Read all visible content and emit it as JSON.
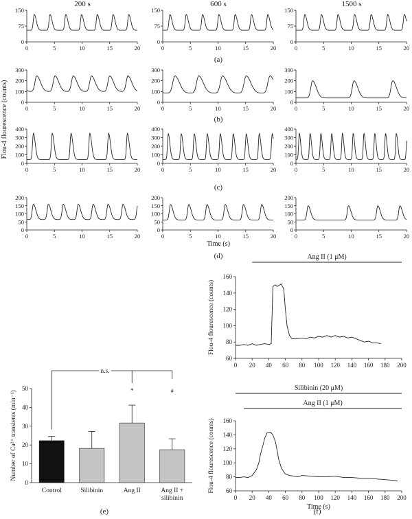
{
  "figure": {
    "column_titles": [
      "200 s",
      "600 s",
      "1500 s"
    ],
    "row_captions": [
      "(a)",
      "(b)",
      "(c)",
      "(d)"
    ],
    "y_axis_label": "Flou-4 flourescence (counts)",
    "x_axis_label": "Time (s)",
    "panel_e_caption": "(e)",
    "panel_f_caption": "(f)"
  },
  "chart_data": [
    {
      "type": "line",
      "panel": "a",
      "column": "200 s",
      "xlim": [
        0,
        20
      ],
      "ylim": [
        0,
        150
      ],
      "xticks": [
        0,
        5,
        10,
        15,
        20
      ],
      "yticks": [
        0,
        75,
        150
      ],
      "trace": {
        "period": 2.85,
        "phase": 1.35,
        "base": 55,
        "peak": 130,
        "width": 0.5
      }
    },
    {
      "type": "line",
      "panel": "a",
      "column": "600 s",
      "xlim": [
        0,
        20
      ],
      "ylim": [
        0,
        150
      ],
      "xticks": [
        0,
        5,
        10,
        15,
        20
      ],
      "yticks": [
        0,
        75,
        150
      ],
      "trace": {
        "period": 2.95,
        "phase": 1.3,
        "base": 55,
        "peak": 130,
        "width": 0.5
      }
    },
    {
      "type": "line",
      "panel": "a",
      "column": "1500 s",
      "xlim": [
        0,
        20
      ],
      "ylim": [
        0,
        150
      ],
      "xticks": [
        0,
        5,
        10,
        15,
        20
      ],
      "yticks": [
        0,
        75,
        150
      ],
      "trace": {
        "period": 3.0,
        "phase": 1.6,
        "base": 55,
        "peak": 130,
        "width": 0.5
      }
    },
    {
      "type": "line",
      "panel": "b",
      "column": "200 s",
      "xlim": [
        0,
        20
      ],
      "ylim": [
        0,
        300
      ],
      "xticks": [
        0,
        5,
        10,
        15,
        20
      ],
      "yticks": [
        0,
        100,
        200,
        300
      ],
      "trace": {
        "period": 3.3,
        "phase": 1.8,
        "base": 100,
        "peak": 245,
        "width": 0.9
      }
    },
    {
      "type": "line",
      "panel": "b",
      "column": "600 s",
      "xlim": [
        0,
        20
      ],
      "ylim": [
        0,
        300
      ],
      "xticks": [
        0,
        5,
        10,
        15,
        20
      ],
      "yticks": [
        0,
        100,
        200,
        300
      ],
      "trace": {
        "period": 4.3,
        "phase": 2.2,
        "base": 85,
        "peak": 245,
        "width": 1.1
      }
    },
    {
      "type": "line",
      "panel": "b",
      "column": "1500 s",
      "xlim": [
        0,
        20
      ],
      "ylim": [
        0,
        300
      ],
      "xticks": [
        0,
        5,
        10,
        15,
        20
      ],
      "yticks": [
        0,
        100,
        200,
        300
      ],
      "trace": {
        "peaks": [
          3.0,
          10.5,
          17.5
        ],
        "base": 40,
        "peak": 200,
        "width": 0.9
      }
    },
    {
      "type": "line",
      "panel": "c",
      "column": "200 s",
      "xlim": [
        0,
        20
      ],
      "ylim": [
        0,
        400
      ],
      "xticks": [
        0,
        5,
        10,
        15,
        20
      ],
      "yticks": [
        0,
        100,
        200,
        300,
        400
      ],
      "trace": {
        "period": 3.4,
        "phase": 1.2,
        "base": 45,
        "peak": 350,
        "width": 0.45
      }
    },
    {
      "type": "line",
      "panel": "c",
      "column": "600 s",
      "xlim": [
        0,
        20
      ],
      "ylim": [
        0,
        400
      ],
      "xticks": [
        0,
        5,
        10,
        15,
        20
      ],
      "yticks": [
        0,
        100,
        200,
        300,
        400
      ],
      "trace": {
        "period": 2.35,
        "phase": 1.0,
        "base": 45,
        "peak": 345,
        "width": 0.4
      }
    },
    {
      "type": "line",
      "panel": "c",
      "column": "1500 s",
      "xlim": [
        0,
        20
      ],
      "ylim": [
        0,
        400
      ],
      "xticks": [
        0,
        5,
        10,
        15,
        20
      ],
      "yticks": [
        0,
        100,
        200,
        300,
        400
      ],
      "trace": {
        "period": 1.95,
        "phase": 0.6,
        "base": 45,
        "peak": 350,
        "width": 0.35
      }
    },
    {
      "type": "line",
      "panel": "d",
      "column": "200 s",
      "xlim": [
        0,
        20
      ],
      "ylim": [
        0,
        200
      ],
      "xticks": [
        0,
        5,
        10,
        15,
        20
      ],
      "yticks": [
        0,
        50,
        100,
        150,
        200
      ],
      "trace": {
        "period": 2.7,
        "phase": 1.2,
        "base": 65,
        "peak": 160,
        "width": 0.6
      }
    },
    {
      "type": "line",
      "panel": "d",
      "column": "600 s",
      "xlim": [
        0,
        20
      ],
      "ylim": [
        0,
        200
      ],
      "xticks": [
        0,
        5,
        10,
        15,
        20
      ],
      "yticks": [
        0,
        50,
        100,
        150,
        200
      ],
      "trace": {
        "period": 3.3,
        "phase": 1.4,
        "base": 62,
        "peak": 158,
        "width": 0.6
      }
    },
    {
      "type": "line",
      "panel": "d",
      "column": "1500 s",
      "xlim": [
        0,
        20
      ],
      "ylim": [
        0,
        200
      ],
      "xticks": [
        0,
        5,
        10,
        15,
        20
      ],
      "yticks": [
        0,
        50,
        100,
        150,
        200
      ],
      "trace": {
        "peaks": [
          2.2,
          9.5,
          14.8,
          18.8
        ],
        "base": 62,
        "peak": 150,
        "width": 0.6
      }
    },
    {
      "type": "bar",
      "panel": "e",
      "categories": [
        "Control",
        "Silibinin",
        "Ang II",
        "Ang II + silibinin"
      ],
      "values": [
        22.3,
        18.2,
        31.7,
        17.5
      ],
      "errors": [
        2.3,
        9.0,
        9.5,
        5.8
      ],
      "colors": [
        "#111111",
        "#c4c4c4",
        "#c4c4c4",
        "#c4c4c4"
      ],
      "ylabel": "Number of Ca²⁺ transients (min⁻¹)",
      "ylim": [
        0,
        50
      ],
      "yticks": [
        0,
        10,
        20,
        30,
        40,
        50
      ],
      "annotations": {
        "bracket_label": "n.s.",
        "star": "*",
        "hash": "#"
      }
    },
    {
      "type": "line",
      "panel": "f-top",
      "xlim": [
        0,
        200
      ],
      "ylim": [
        60,
        160
      ],
      "xticks": [
        0,
        20,
        40,
        60,
        80,
        100,
        120,
        140,
        160,
        180,
        200
      ],
      "yticks": [
        60,
        80,
        100,
        120,
        140,
        160
      ],
      "ylabel": "Flou-4 flourescence (counts)",
      "treatment_bars": [
        {
          "label": "Ang II (1 μM)",
          "from": 20,
          "to": 200
        }
      ],
      "x": [
        0,
        5,
        10,
        15,
        20,
        25,
        30,
        35,
        40,
        43,
        45,
        48,
        50,
        55,
        58,
        60,
        62,
        65,
        68,
        70,
        75,
        80,
        85,
        90,
        95,
        100,
        105,
        110,
        115,
        120,
        125,
        130,
        135,
        140,
        145,
        150,
        155,
        160,
        165,
        170,
        175
      ],
      "values": [
        76,
        76,
        77,
        76,
        78,
        76,
        77,
        78,
        77,
        78,
        148,
        150,
        148,
        151,
        145,
        120,
        100,
        88,
        84,
        84,
        84,
        85,
        84,
        86,
        85,
        87,
        86,
        88,
        86,
        88,
        86,
        87,
        85,
        86,
        84,
        82,
        80,
        81,
        79,
        79,
        78
      ]
    },
    {
      "type": "line",
      "panel": "f-bottom",
      "xlim": [
        0,
        200
      ],
      "ylim": [
        60,
        160
      ],
      "xticks": [
        0,
        20,
        40,
        60,
        80,
        100,
        120,
        140,
        160,
        180,
        200
      ],
      "yticks": [
        60,
        80,
        100,
        120,
        140,
        160
      ],
      "xlabel": "Time (s)",
      "ylabel": "Flou-4 flourescence (counts)",
      "treatment_bars": [
        {
          "label": "Silibinin (20 μM)",
          "from": 0,
          "to": 200
        },
        {
          "label": "Ang II (1 μM)",
          "from": 10,
          "to": 200
        }
      ],
      "x": [
        0,
        5,
        10,
        15,
        20,
        25,
        28,
        30,
        33,
        35,
        38,
        40,
        42,
        45,
        48,
        50,
        52,
        55,
        58,
        60,
        65,
        70,
        75,
        80,
        90,
        100,
        110,
        120,
        130,
        140,
        150,
        160,
        170,
        180,
        190,
        195
      ],
      "values": [
        79,
        79,
        80,
        79,
        82,
        90,
        100,
        112,
        125,
        135,
        143,
        143,
        144,
        140,
        130,
        118,
        105,
        93,
        87,
        84,
        82,
        81,
        80,
        82,
        81,
        80,
        80,
        81,
        79,
        79,
        78,
        78,
        77,
        76,
        75,
        74
      ]
    }
  ]
}
